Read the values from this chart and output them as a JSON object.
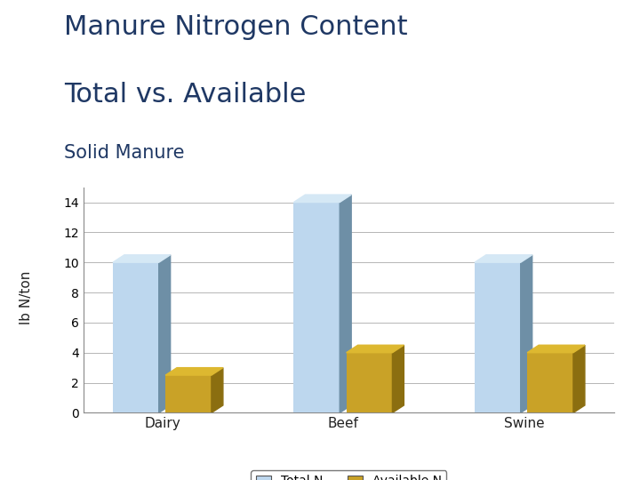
{
  "title_line1": "Manure Nitrogen Content",
  "title_line2": "Total vs. Available",
  "subtitle": "Solid Manure",
  "categories": [
    "Dairy",
    "Beef",
    "Swine"
  ],
  "total_n": [
    10,
    14,
    10
  ],
  "available_n": [
    2.5,
    4,
    4
  ],
  "total_n_color_front": "#BDD7EE",
  "total_n_color_side": "#6E8FA6",
  "total_n_color_top": "#D5E8F5",
  "available_n_color_front": "#C9A227",
  "available_n_color_side": "#8B6E10",
  "available_n_color_top": "#DDB830",
  "title_color": "#1F3864",
  "subtitle_color": "#1F3864",
  "ylabel": "lb N/ton",
  "ylim": [
    0,
    15
  ],
  "yticks": [
    0,
    2,
    4,
    6,
    8,
    10,
    12,
    14
  ],
  "background_color": "#FFFFFF",
  "legend_total": "Total N",
  "legend_available": "Available N",
  "title_fontsize": 22,
  "subtitle_fontsize": 15
}
